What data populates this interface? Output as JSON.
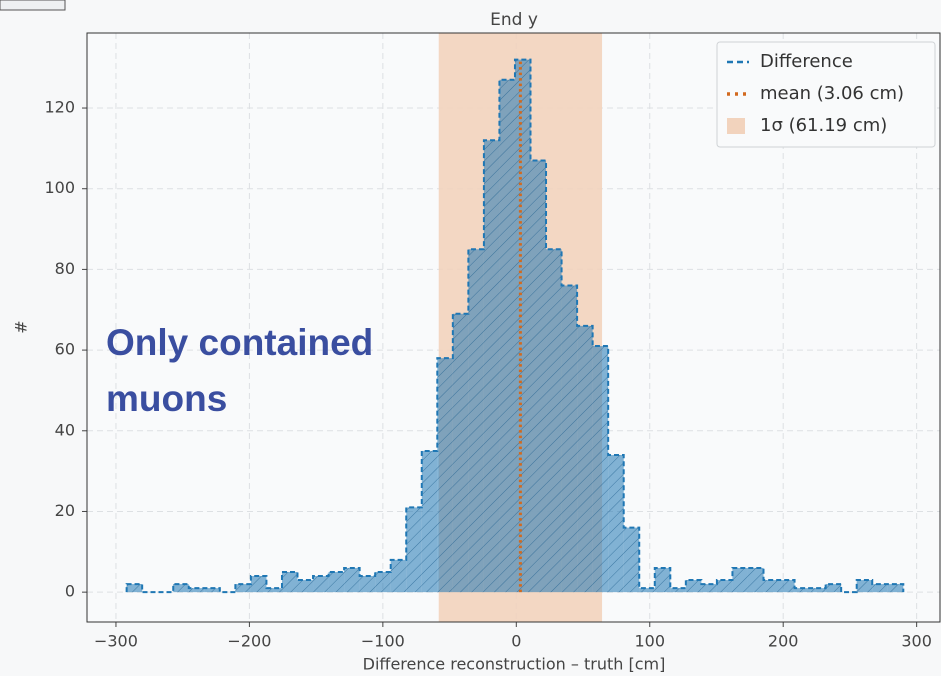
{
  "chart_data": {
    "type": "histogram",
    "title": "End y",
    "xlabel": "Difference reconstruction – truth [cm]",
    "ylabel": "#",
    "annotation": "Only contained muons",
    "bins": [
      -292,
      -280.36,
      -268.72,
      -257.08,
      -245.44,
      -233.8,
      -222.16,
      -210.52,
      -198.88,
      -187.24,
      -175.6,
      -163.96,
      -152.32,
      -140.68,
      -129.04,
      -117.4,
      -105.76,
      -94.12,
      -82.48,
      -70.84,
      -59.2,
      -47.56,
      -35.92,
      -24.28,
      -12.64,
      -1,
      10.64,
      22.28,
      33.92,
      45.56,
      57.2,
      68.84,
      80.48,
      92.12,
      103.76,
      115.4,
      127.04,
      138.68,
      150.32,
      161.96,
      173.6,
      185.24,
      196.88,
      208.52,
      220.16,
      231.8,
      243.44,
      255.08,
      266.72,
      278.36,
      290
    ],
    "series": [
      {
        "name": "Difference",
        "color": "#1f77b4",
        "values": [
          2,
          0,
          0,
          2,
          1,
          1,
          0,
          2,
          4,
          1,
          5,
          3,
          4,
          5,
          6,
          4,
          5,
          8,
          21,
          35,
          58,
          69,
          85,
          112,
          127,
          132,
          107,
          85,
          76,
          66,
          61,
          34,
          16,
          1,
          6,
          1,
          3,
          2,
          3,
          6,
          6,
          3,
          3,
          1,
          1,
          2,
          0,
          3,
          2,
          2
        ]
      }
    ],
    "mean": {
      "name": "mean (3.06 cm)",
      "value": 3.06,
      "color": "#d2691e"
    },
    "sigma_band": {
      "name": "1σ (61.19 cm)",
      "value": 61.19,
      "color": "#f2d3bd"
    },
    "xlim": [
      -321.7,
      317.5
    ],
    "ylim": [
      -7.4,
      138.6
    ],
    "xticks": [
      {
        "value": -300,
        "label": "−300"
      },
      {
        "value": -200,
        "label": "−200"
      },
      {
        "value": -100,
        "label": "−100"
      },
      0,
      100,
      200,
      300
    ],
    "yticks": [
      0,
      20,
      40,
      60,
      80,
      100,
      120
    ],
    "grid": true,
    "legend": "upper right"
  }
}
